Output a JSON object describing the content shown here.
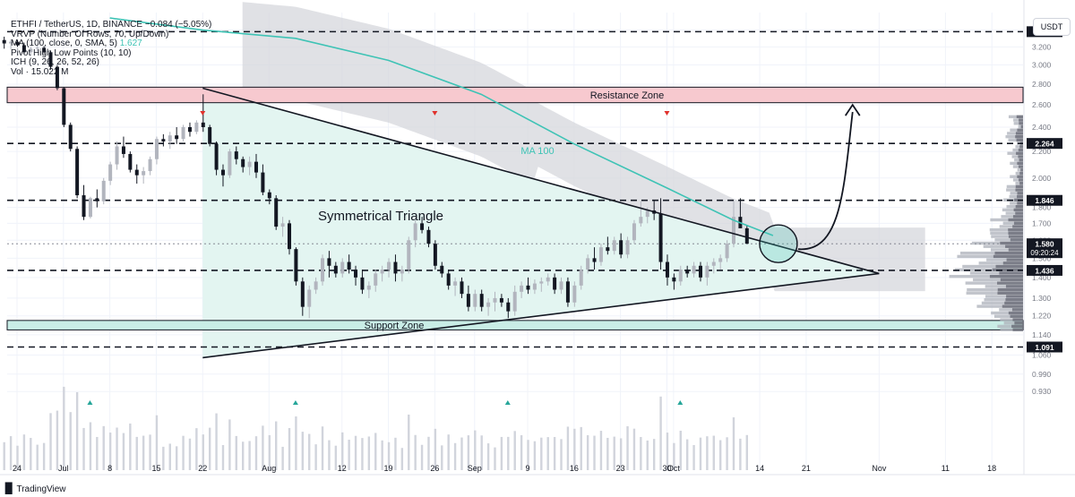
{
  "legend": {
    "line1": "ETHFI / TetherUS, 1D, BINANCE  −0.084 (−5.05%)",
    "line2": "VRVP (Number Of Rows, 70, Up/Down)",
    "line3_label": "MA (100, close, 0, SMA, 5)",
    "line3_value": "1.627",
    "line4": "Pivot High Low Points (10, 10)",
    "line5": "ICH (9, 26, 26, 52, 26)",
    "line6": "Vol · 15.022 M"
  },
  "currency_button": "USDT",
  "brand": "TradingView",
  "colors": {
    "ma": "#3ec3b5",
    "bull": "#b2b5be",
    "bear": "#131722",
    "zone_resistance": "#f7c9cf",
    "zone_support": "#c9ede6",
    "triangle_fill": "#e3f5f1",
    "cloud": "#d5d7dc",
    "pivot_high": "#e0312c",
    "pivot_low": "#26a69a"
  },
  "chart_data": {
    "type": "candlestick",
    "symbol": "ETHFI / TetherUS",
    "interval": "1D",
    "ylim": [
      0.87,
      3.62
    ],
    "y_axis_ticks": [
      0.93,
      0.99,
      1.06,
      1.14,
      1.22,
      1.3,
      1.4,
      1.5,
      1.6,
      1.7,
      1.8,
      2.0,
      2.2,
      2.4,
      2.6,
      2.8,
      3.0,
      3.2,
      3.4
    ],
    "y_axis_tick_labels": [
      "0.930",
      "0.990",
      "1.060",
      "1.140",
      "1.220",
      "1.300",
      "1.400",
      "1.500",
      "1.600",
      "1.700",
      "1.800",
      "2.000",
      "2.200",
      "2.400",
      "2.600",
      "2.800",
      "3.000",
      "3.200",
      "3.400"
    ],
    "x_axis_labels": [
      {
        "label": "24",
        "date": "2024-06-24"
      },
      {
        "label": "Jul",
        "date": "2024-07-01"
      },
      {
        "label": "8",
        "date": "2024-07-08"
      },
      {
        "label": "15",
        "date": "2024-07-15"
      },
      {
        "label": "22",
        "date": "2024-07-22"
      },
      {
        "label": "Aug",
        "date": "2024-08-01"
      },
      {
        "label": "12",
        "date": "2024-08-12"
      },
      {
        "label": "19",
        "date": "2024-08-19"
      },
      {
        "label": "26",
        "date": "2024-08-26"
      },
      {
        "label": "Sep",
        "date": "2024-09-01"
      },
      {
        "label": "9",
        "date": "2024-09-09"
      },
      {
        "label": "16",
        "date": "2024-09-16"
      },
      {
        "label": "23",
        "date": "2024-09-23"
      },
      {
        "label": "30",
        "date": "2024-09-30"
      },
      {
        "label": "Oct",
        "date": "2024-10-01"
      },
      {
        "label": "14",
        "date": "2024-10-14"
      },
      {
        "label": "21",
        "date": "2024-10-21"
      },
      {
        "label": "Nov",
        "date": "2024-11-01"
      },
      {
        "label": "11",
        "date": "2024-11-11"
      },
      {
        "label": "18",
        "date": "2024-11-18"
      }
    ],
    "ohlc": [
      3.28,
      3.32,
      3.18,
      3.24,
      3.24,
      3.29,
      3.17,
      3.26,
      3.26,
      3.28,
      3.2,
      3.22,
      3.22,
      3.25,
      3.12,
      3.14,
      3.14,
      3.2,
      3.1,
      3.18,
      3.18,
      3.22,
      3.15,
      3.19,
      3.19,
      3.21,
      3.12,
      3.14,
      3.14,
      3.16,
      2.95,
      2.98,
      2.98,
      3.0,
      2.74,
      2.76,
      2.76,
      2.77,
      2.4,
      2.42,
      2.42,
      2.44,
      2.2,
      2.22,
      2.22,
      2.24,
      1.86,
      1.88,
      1.88,
      1.95,
      1.72,
      1.74,
      1.74,
      1.87,
      1.73,
      1.86,
      1.86,
      1.92,
      1.8,
      1.84,
      1.84,
      2.0,
      1.82,
      1.98,
      1.98,
      2.12,
      1.95,
      2.1,
      2.1,
      2.28,
      2.06,
      2.24,
      2.24,
      2.32,
      2.15,
      2.18,
      2.18,
      2.2,
      2.04,
      2.06,
      2.06,
      2.1,
      1.96,
      2.02,
      2.02,
      2.08,
      1.96,
      2.05,
      2.05,
      2.16,
      2.02,
      2.14,
      2.14,
      2.32,
      2.1,
      2.3,
      2.3,
      2.34,
      2.24,
      2.28,
      2.28,
      2.36,
      2.22,
      2.33,
      2.33,
      2.4,
      2.26,
      2.3,
      2.3,
      2.42,
      2.28,
      2.4,
      2.4,
      2.44,
      2.32,
      2.36,
      2.36,
      2.46,
      2.34,
      2.44,
      2.44,
      2.7,
      2.36,
      2.4,
      2.4,
      2.42,
      2.24,
      2.26,
      2.26,
      2.28,
      2.02,
      2.06,
      2.06,
      2.1,
      1.94,
      2.02,
      2.02,
      2.22,
      2.0,
      2.2,
      2.2,
      2.24,
      2.1,
      2.14,
      2.14,
      2.16,
      2.04,
      2.08,
      2.08,
      2.16,
      2.02,
      2.12,
      2.12,
      2.18,
      2.0,
      2.04,
      2.04,
      2.1,
      1.88,
      1.9,
      1.9,
      1.92,
      1.82,
      1.86,
      1.86,
      1.88,
      1.66,
      1.68,
      1.68,
      1.74,
      1.62,
      1.7,
      1.7,
      1.72,
      1.52,
      1.55,
      1.55,
      1.56,
      1.36,
      1.38,
      1.38,
      1.4,
      1.22,
      1.26,
      1.26,
      1.36,
      1.21,
      1.34,
      1.34,
      1.4,
      1.32,
      1.38,
      1.38,
      1.52,
      1.36,
      1.5,
      1.5,
      1.54,
      1.4,
      1.46,
      1.46,
      1.48,
      1.4,
      1.42,
      1.42,
      1.5,
      1.4,
      1.48,
      1.48,
      1.52,
      1.42,
      1.44,
      1.44,
      1.46,
      1.36,
      1.4,
      1.4,
      1.44,
      1.32,
      1.34,
      1.34,
      1.38,
      1.3,
      1.36,
      1.36,
      1.44,
      1.33,
      1.42,
      1.42,
      1.46,
      1.38,
      1.44,
      1.44,
      1.5,
      1.4,
      1.48,
      1.48,
      1.52,
      1.38,
      1.42,
      1.42,
      1.46,
      1.38,
      1.44,
      1.44,
      1.62,
      1.42,
      1.6,
      1.6,
      1.72,
      1.56,
      1.7,
      1.7,
      1.74,
      1.64,
      1.66,
      1.66,
      1.68,
      1.56,
      1.58,
      1.58,
      1.6,
      1.44,
      1.46,
      1.46,
      1.48,
      1.4,
      1.42,
      1.42,
      1.44,
      1.34,
      1.36,
      1.36,
      1.4,
      1.31,
      1.38,
      1.38,
      1.4,
      1.3,
      1.32,
      1.32,
      1.36,
      1.24,
      1.26,
      1.26,
      1.34,
      1.24,
      1.32,
      1.32,
      1.34,
      1.24,
      1.26,
      1.26,
      1.3,
      1.22,
      1.28,
      1.28,
      1.33,
      1.24,
      1.3,
      1.3,
      1.32,
      1.26,
      1.28,
      1.28,
      1.3,
      1.21,
      1.24,
      1.24,
      1.36,
      1.22,
      1.33,
      1.33,
      1.38,
      1.3,
      1.36,
      1.36,
      1.4,
      1.32,
      1.34,
      1.34,
      1.39,
      1.32,
      1.37,
      1.37,
      1.4,
      1.33,
      1.38,
      1.38,
      1.42,
      1.36,
      1.4,
      1.4,
      1.42,
      1.32,
      1.34,
      1.34,
      1.4,
      1.32,
      1.38,
      1.38,
      1.4,
      1.26,
      1.28,
      1.28,
      1.38,
      1.26,
      1.36,
      1.36,
      1.46,
      1.34,
      1.44,
      1.44,
      1.52,
      1.42,
      1.5,
      1.5,
      1.56,
      1.44,
      1.48,
      1.48,
      1.58,
      1.46,
      1.56,
      1.56,
      1.62,
      1.52,
      1.54,
      1.54,
      1.62,
      1.52,
      1.6,
      1.6,
      1.64,
      1.5,
      1.52,
      1.52,
      1.62,
      1.5,
      1.6,
      1.6,
      1.72,
      1.58,
      1.7,
      1.7,
      1.84,
      1.68,
      1.74,
      1.74,
      1.8,
      1.7,
      1.78,
      1.78,
      1.85,
      1.72,
      1.76,
      1.76,
      1.86,
      1.44,
      1.48,
      1.48,
      1.52,
      1.36,
      1.4,
      1.4,
      1.42,
      1.34,
      1.38,
      1.38,
      1.46,
      1.36,
      1.44,
      1.44,
      1.46,
      1.4,
      1.42,
      1.42,
      1.48,
      1.4,
      1.46,
      1.46,
      1.48,
      1.38,
      1.4,
      1.4,
      1.48,
      1.36,
      1.46,
      1.46,
      1.5,
      1.42,
      1.48,
      1.48,
      1.52,
      1.44,
      1.5,
      1.5,
      1.6,
      1.48,
      1.58,
      1.58,
      1.84,
      1.56,
      1.74,
      1.74,
      1.86,
      1.7,
      1.67,
      1.67,
      1.69,
      1.58,
      1.58
    ],
    "ma100": {
      "name": "MA 100",
      "points": [
        {
          "date": "2024-07-08",
          "y": 3.55
        },
        {
          "date": "2024-07-22",
          "y": 3.4
        },
        {
          "date": "2024-08-05",
          "y": 3.3
        },
        {
          "date": "2024-08-19",
          "y": 3.05
        },
        {
          "date": "2024-09-02",
          "y": 2.7
        },
        {
          "date": "2024-09-16",
          "y": 2.26
        },
        {
          "date": "2024-09-30",
          "y": 1.93
        },
        {
          "date": "2024-10-10",
          "y": 1.72
        },
        {
          "date": "2024-10-16",
          "y": 1.627
        }
      ]
    },
    "levels": [
      3.38,
      2.264,
      1.846,
      1.436,
      1.091
    ],
    "price_labels": [
      {
        "value": 3.38,
        "text": "3.380",
        "style": "level"
      },
      {
        "value": 2.264,
        "text": "2.264",
        "style": "level"
      },
      {
        "value": 1.846,
        "text": "1.846",
        "style": "level"
      },
      {
        "value": 1.58,
        "text": "1.580",
        "style": "current"
      },
      {
        "value": 1.436,
        "text": "1.436",
        "style": "level"
      },
      {
        "value": 1.091,
        "text": "1.091",
        "style": "level"
      }
    ],
    "countdown": "09:20:24",
    "zones": [
      {
        "name": "Resistance Zone",
        "top": 2.77,
        "bottom": 2.62
      },
      {
        "name": "Support Zone",
        "top": 1.2,
        "bottom": 1.16
      }
    ],
    "triangle": {
      "label": "Symmetrical Triangle",
      "upper": [
        {
          "date": "2024-07-22",
          "y": 2.76
        },
        {
          "date": "2024-11-01",
          "y": 1.42
        }
      ],
      "lower": [
        {
          "date": "2024-07-22",
          "y": 1.05
        },
        {
          "date": "2024-11-01",
          "y": 1.42
        }
      ]
    },
    "pivots_high": [
      "2024-07-22",
      "2024-08-26",
      "2024-09-30"
    ],
    "pivots_low": [
      "2024-07-05",
      "2024-08-05",
      "2024-09-06",
      "2024-10-02"
    ],
    "ma_label": "MA 100",
    "projection_target": 2.6
  }
}
